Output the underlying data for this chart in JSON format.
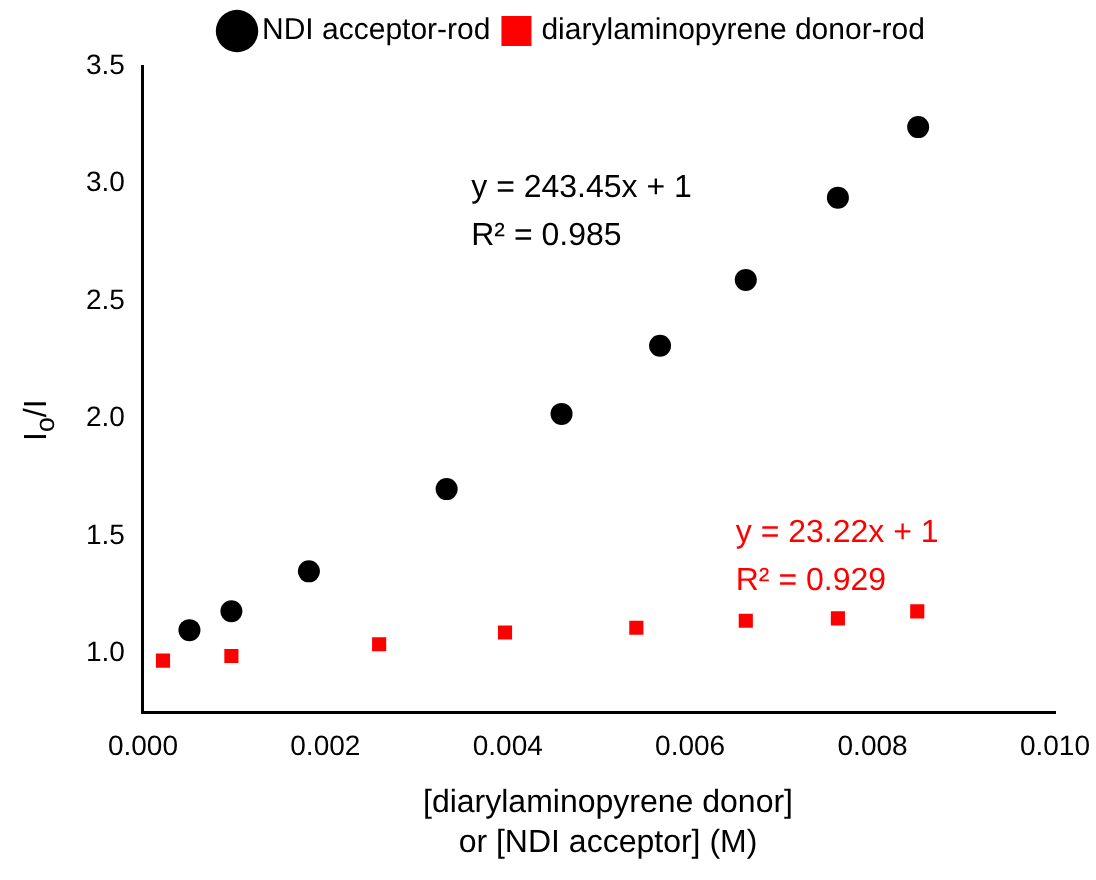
{
  "chart_data": {
    "type": "scatter",
    "xlabel": "[diarylaminopyrene donor]\nor [NDI acceptor] (M)",
    "ylabel": "I$_{o}$/I",
    "series": [
      {
        "name": "NDI acceptor-rod",
        "color": "#000000",
        "marker": "circle",
        "x": [
          0.00051,
          0.00097,
          0.00182,
          0.00333,
          0.00459,
          0.00567,
          0.00661,
          0.00762,
          0.0085
        ],
        "values": [
          1.1,
          1.18,
          1.35,
          1.7,
          2.02,
          2.31,
          2.59,
          2.94,
          3.24
        ]
      },
      {
        "name": "diarylaminopyrene donor-rod",
        "color": "#ff0000",
        "marker": "square",
        "x": [
          0.00022,
          0.00097,
          0.00259,
          0.00397,
          0.00541,
          0.00661,
          0.00762,
          0.00849
        ],
        "values": [
          0.97,
          0.99,
          1.04,
          1.09,
          1.11,
          1.14,
          1.15,
          1.18
        ]
      }
    ],
    "annotations": [
      "y = 243.45x + 1\nR² = 0.985",
      "y = 23.22x + 1\nR² = 0.929"
    ],
    "xlim": [
      0,
      0.01
    ],
    "ylim": [
      0.75,
      3.5
    ],
    "xticks": [
      {
        "value": 0,
        "label": "0.000"
      },
      {
        "value": 0.002,
        "label": "0.002"
      },
      {
        "value": 0.004,
        "label": "0.004"
      },
      {
        "value": 0.006,
        "label": "0.006"
      },
      {
        "value": 0.008,
        "label": "0.008"
      },
      {
        "value": 0.01,
        "label": "0.010"
      }
    ],
    "yticks": [
      {
        "value": 1,
        "label": "1.0"
      },
      {
        "value": 1.5,
        "label": "1.5"
      },
      {
        "value": 2,
        "label": "2.0"
      },
      {
        "value": 2.5,
        "label": "2.5"
      },
      {
        "value": 3,
        "label": "3.0"
      },
      {
        "value": 3.5,
        "label": "3.5"
      }
    ],
    "grid": false,
    "legend": "top"
  }
}
